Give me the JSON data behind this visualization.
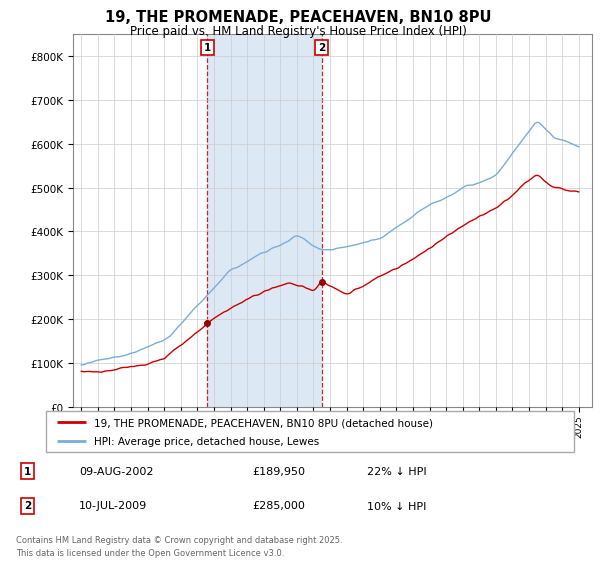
{
  "title": "19, THE PROMENADE, PEACEHAVEN, BN10 8PU",
  "subtitle": "Price paid vs. HM Land Registry's House Price Index (HPI)",
  "legend_line1": "19, THE PROMENADE, PEACEHAVEN, BN10 8PU (detached house)",
  "legend_line2": "HPI: Average price, detached house, Lewes",
  "footer": "Contains HM Land Registry data © Crown copyright and database right 2025.\nThis data is licensed under the Open Government Licence v3.0.",
  "marker1_date": "09-AUG-2002",
  "marker1_price": "£189,950",
  "marker1_hpi": "22% ↓ HPI",
  "marker2_date": "10-JUL-2009",
  "marker2_price": "£285,000",
  "marker2_hpi": "10% ↓ HPI",
  "red_color": "#cc0000",
  "blue_color": "#7aaddb",
  "shade_color": "#dce9f5",
  "marker1_x": 2002.6,
  "marker2_x": 2009.5,
  "ylim": [
    0,
    850000
  ],
  "xlim_start": 1994.5,
  "xlim_end": 2025.8,
  "background_color": "#ffffff",
  "plot_bg": "#ffffff",
  "grid_color": "#cccccc"
}
